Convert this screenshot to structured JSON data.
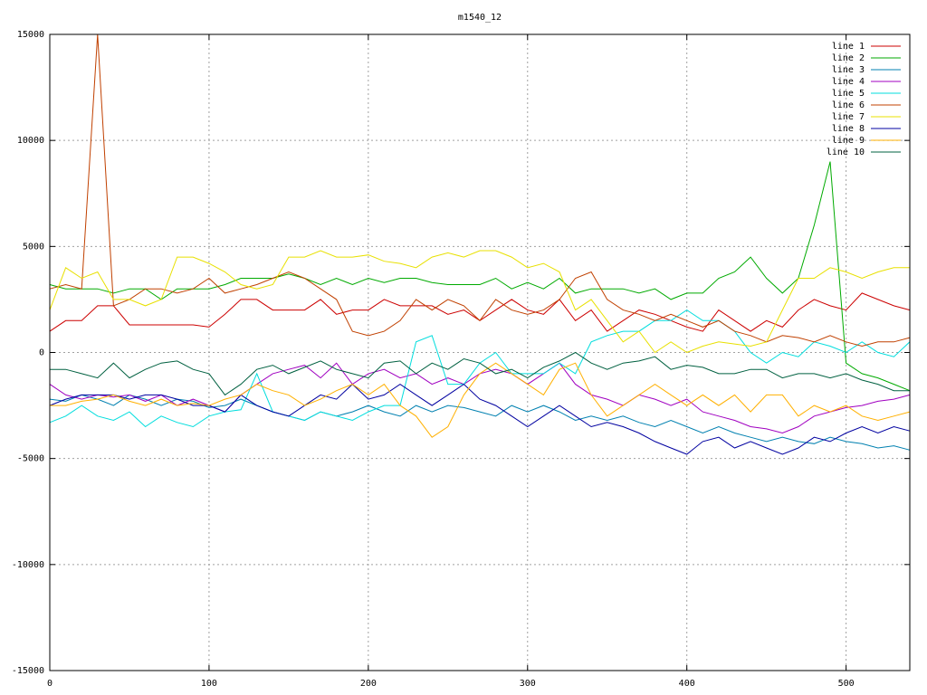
{
  "chart_data": {
    "type": "line",
    "title": "m1540_12",
    "x": [
      0,
      10,
      20,
      30,
      40,
      50,
      60,
      70,
      80,
      90,
      100,
      110,
      120,
      130,
      140,
      150,
      160,
      170,
      180,
      190,
      200,
      210,
      220,
      230,
      240,
      250,
      260,
      270,
      280,
      290,
      300,
      310,
      320,
      330,
      340,
      350,
      360,
      370,
      380,
      390,
      400,
      410,
      420,
      430,
      440,
      450,
      460,
      470,
      480,
      490,
      500,
      510,
      520,
      530,
      540
    ],
    "xlim": [
      0,
      540
    ],
    "xticks": [
      0,
      100,
      200,
      300,
      400,
      500
    ],
    "ylim": [
      -15000,
      15000
    ],
    "yticks": [
      -15000,
      -10000,
      -5000,
      0,
      5000,
      10000,
      15000
    ],
    "grid": true,
    "legend": "top-right",
    "series": [
      {
        "name": "line 1",
        "color": "#cc0000",
        "values": [
          1000,
          1500,
          1500,
          2200,
          2200,
          1300,
          1300,
          1300,
          1300,
          1300,
          1200,
          1800,
          2500,
          2500,
          2000,
          2000,
          2000,
          2500,
          1800,
          2000,
          2000,
          2500,
          2200,
          2200,
          2200,
          1800,
          2000,
          1500,
          2000,
          2500,
          2000,
          1800,
          2500,
          1500,
          2000,
          1000,
          1500,
          2000,
          1800,
          1500,
          1200,
          1000,
          2000,
          1500,
          1000,
          1500,
          1200,
          2000,
          2500,
          2200,
          2000,
          2800,
          2500,
          2200,
          2000
        ]
      },
      {
        "name": "line 2",
        "color": "#00aa00",
        "values": [
          3200,
          3000,
          3000,
          3000,
          2800,
          3000,
          3000,
          2500,
          3000,
          3000,
          3000,
          3200,
          3500,
          3500,
          3500,
          3700,
          3500,
          3200,
          3500,
          3200,
          3500,
          3300,
          3500,
          3500,
          3300,
          3200,
          3200,
          3200,
          3500,
          3000,
          3300,
          3000,
          3500,
          2800,
          3000,
          3000,
          3000,
          2800,
          3000,
          2500,
          2800,
          2800,
          3500,
          3800,
          4500,
          3500,
          2800,
          3500,
          6000,
          9000,
          -500,
          -1000,
          -1200,
          -1500,
          -1800
        ]
      },
      {
        "name": "line 3",
        "color": "#0080b0",
        "values": [
          -2200,
          -2300,
          -2000,
          -2200,
          -2500,
          -2000,
          -2200,
          -2500,
          -2200,
          -2300,
          -2600,
          -2500,
          -2200,
          -2500,
          -2800,
          -3000,
          -3200,
          -2800,
          -3000,
          -2800,
          -2500,
          -2800,
          -3000,
          -2500,
          -2800,
          -2500,
          -2600,
          -2800,
          -3000,
          -2500,
          -2800,
          -2500,
          -2800,
          -3200,
          -3000,
          -3200,
          -3000,
          -3300,
          -3500,
          -3200,
          -3500,
          -3800,
          -3500,
          -3800,
          -4000,
          -4200,
          -4000,
          -4200,
          -4300,
          -4000,
          -4200,
          -4300,
          -4500,
          -4400,
          -4600
        ]
      },
      {
        "name": "line 4",
        "color": "#a000c0",
        "values": [
          -1500,
          -2000,
          -2200,
          -2000,
          -2100,
          -2000,
          -2300,
          -2000,
          -2500,
          -2200,
          -2500,
          -2800,
          -2000,
          -1500,
          -1000,
          -800,
          -600,
          -1200,
          -500,
          -1500,
          -1000,
          -800,
          -1200,
          -1000,
          -1500,
          -1200,
          -1500,
          -1000,
          -800,
          -1000,
          -1500,
          -1000,
          -500,
          -1500,
          -2000,
          -2200,
          -2500,
          -2000,
          -2200,
          -2500,
          -2200,
          -2800,
          -3000,
          -3200,
          -3500,
          -3600,
          -3800,
          -3500,
          -3000,
          -2800,
          -2600,
          -2500,
          -2300,
          -2200,
          -2000
        ]
      },
      {
        "name": "line 5",
        "color": "#00dddd",
        "values": [
          -3300,
          -3000,
          -2500,
          -3000,
          -3200,
          -2800,
          -3500,
          -3000,
          -3300,
          -3500,
          -3000,
          -2800,
          -2700,
          -1000,
          -2800,
          -3000,
          -3200,
          -2800,
          -3000,
          -3200,
          -2800,
          -2500,
          -2500,
          500,
          800,
          -1500,
          -1500,
          -500,
          0,
          -1000,
          -1000,
          -1000,
          -500,
          -1000,
          500,
          800,
          1000,
          1000,
          1500,
          1500,
          2000,
          1500,
          1500,
          1000,
          0,
          -500,
          0,
          -200,
          500,
          300,
          0,
          500,
          0,
          -200,
          500
        ]
      },
      {
        "name": "line 6",
        "color": "#c04000",
        "values": [
          3000,
          3200,
          3000,
          15000,
          2200,
          2500,
          3000,
          3000,
          2800,
          3000,
          3500,
          2800,
          3000,
          3200,
          3500,
          3800,
          3500,
          3000,
          2500,
          1000,
          800,
          1000,
          1500,
          2500,
          2000,
          2500,
          2200,
          1500,
          2500,
          2000,
          1800,
          2000,
          2500,
          3500,
          3800,
          2500,
          2000,
          1800,
          1500,
          1800,
          1500,
          1200,
          1500,
          1000,
          800,
          500,
          800,
          700,
          500,
          800,
          500,
          300,
          500,
          500,
          700
        ]
      },
      {
        "name": "line 7",
        "color": "#e8e000",
        "values": [
          2000,
          4000,
          3500,
          3800,
          2500,
          2500,
          2200,
          2500,
          4500,
          4500,
          4200,
          3800,
          3200,
          3000,
          3200,
          4500,
          4500,
          4800,
          4500,
          4500,
          4600,
          4300,
          4200,
          4000,
          4500,
          4700,
          4500,
          4800,
          4800,
          4500,
          4000,
          4200,
          3800,
          2000,
          2500,
          1500,
          500,
          1000,
          0,
          500,
          0,
          300,
          500,
          400,
          300,
          500,
          2000,
          3500,
          3500,
          4000,
          3800,
          3500,
          3800,
          4000,
          4000
        ]
      },
      {
        "name": "line 8",
        "color": "#0000a0",
        "values": [
          -2500,
          -2200,
          -2000,
          -2000,
          -2000,
          -2200,
          -2000,
          -2000,
          -2200,
          -2500,
          -2500,
          -2800,
          -2000,
          -2500,
          -2800,
          -3000,
          -2500,
          -2000,
          -2200,
          -1500,
          -2200,
          -2000,
          -1500,
          -2000,
          -2500,
          -2000,
          -1500,
          -2200,
          -2500,
          -3000,
          -3500,
          -3000,
          -2500,
          -3000,
          -3500,
          -3300,
          -3500,
          -3800,
          -4200,
          -4500,
          -4800,
          -4200,
          -4000,
          -4500,
          -4200,
          -4500,
          -4800,
          -4500,
          -4000,
          -4200,
          -3800,
          -3500,
          -3800,
          -3500,
          -3700
        ]
      },
      {
        "name": "line 9",
        "color": "#ffb000",
        "values": [
          -2500,
          -2500,
          -2300,
          -2200,
          -2000,
          -2300,
          -2500,
          -2200,
          -2500,
          -2400,
          -2500,
          -2200,
          -2000,
          -1500,
          -1800,
          -2000,
          -2500,
          -2200,
          -1800,
          -1500,
          -2000,
          -1500,
          -2500,
          -3000,
          -4000,
          -3500,
          -2000,
          -1000,
          -500,
          -1000,
          -1500,
          -2000,
          -800,
          -500,
          -2000,
          -3000,
          -2500,
          -2000,
          -1500,
          -2000,
          -2500,
          -2000,
          -2500,
          -2000,
          -2800,
          -2000,
          -2000,
          -3000,
          -2500,
          -2800,
          -2500,
          -3000,
          -3200,
          -3000,
          -2800
        ]
      },
      {
        "name": "line 10",
        "color": "#006040",
        "values": [
          -800,
          -800,
          -1000,
          -1200,
          -500,
          -1200,
          -800,
          -500,
          -400,
          -800,
          -1000,
          -2000,
          -1500,
          -800,
          -600,
          -1000,
          -700,
          -400,
          -800,
          -1000,
          -1200,
          -500,
          -400,
          -1000,
          -500,
          -800,
          -300,
          -500,
          -1000,
          -800,
          -1200,
          -700,
          -400,
          0,
          -500,
          -800,
          -500,
          -400,
          -200,
          -800,
          -600,
          -700,
          -1000,
          -1000,
          -800,
          -800,
          -1200,
          -1000,
          -1000,
          -1200,
          -1000,
          -1300,
          -1500,
          -1800,
          -1800
        ]
      }
    ]
  }
}
